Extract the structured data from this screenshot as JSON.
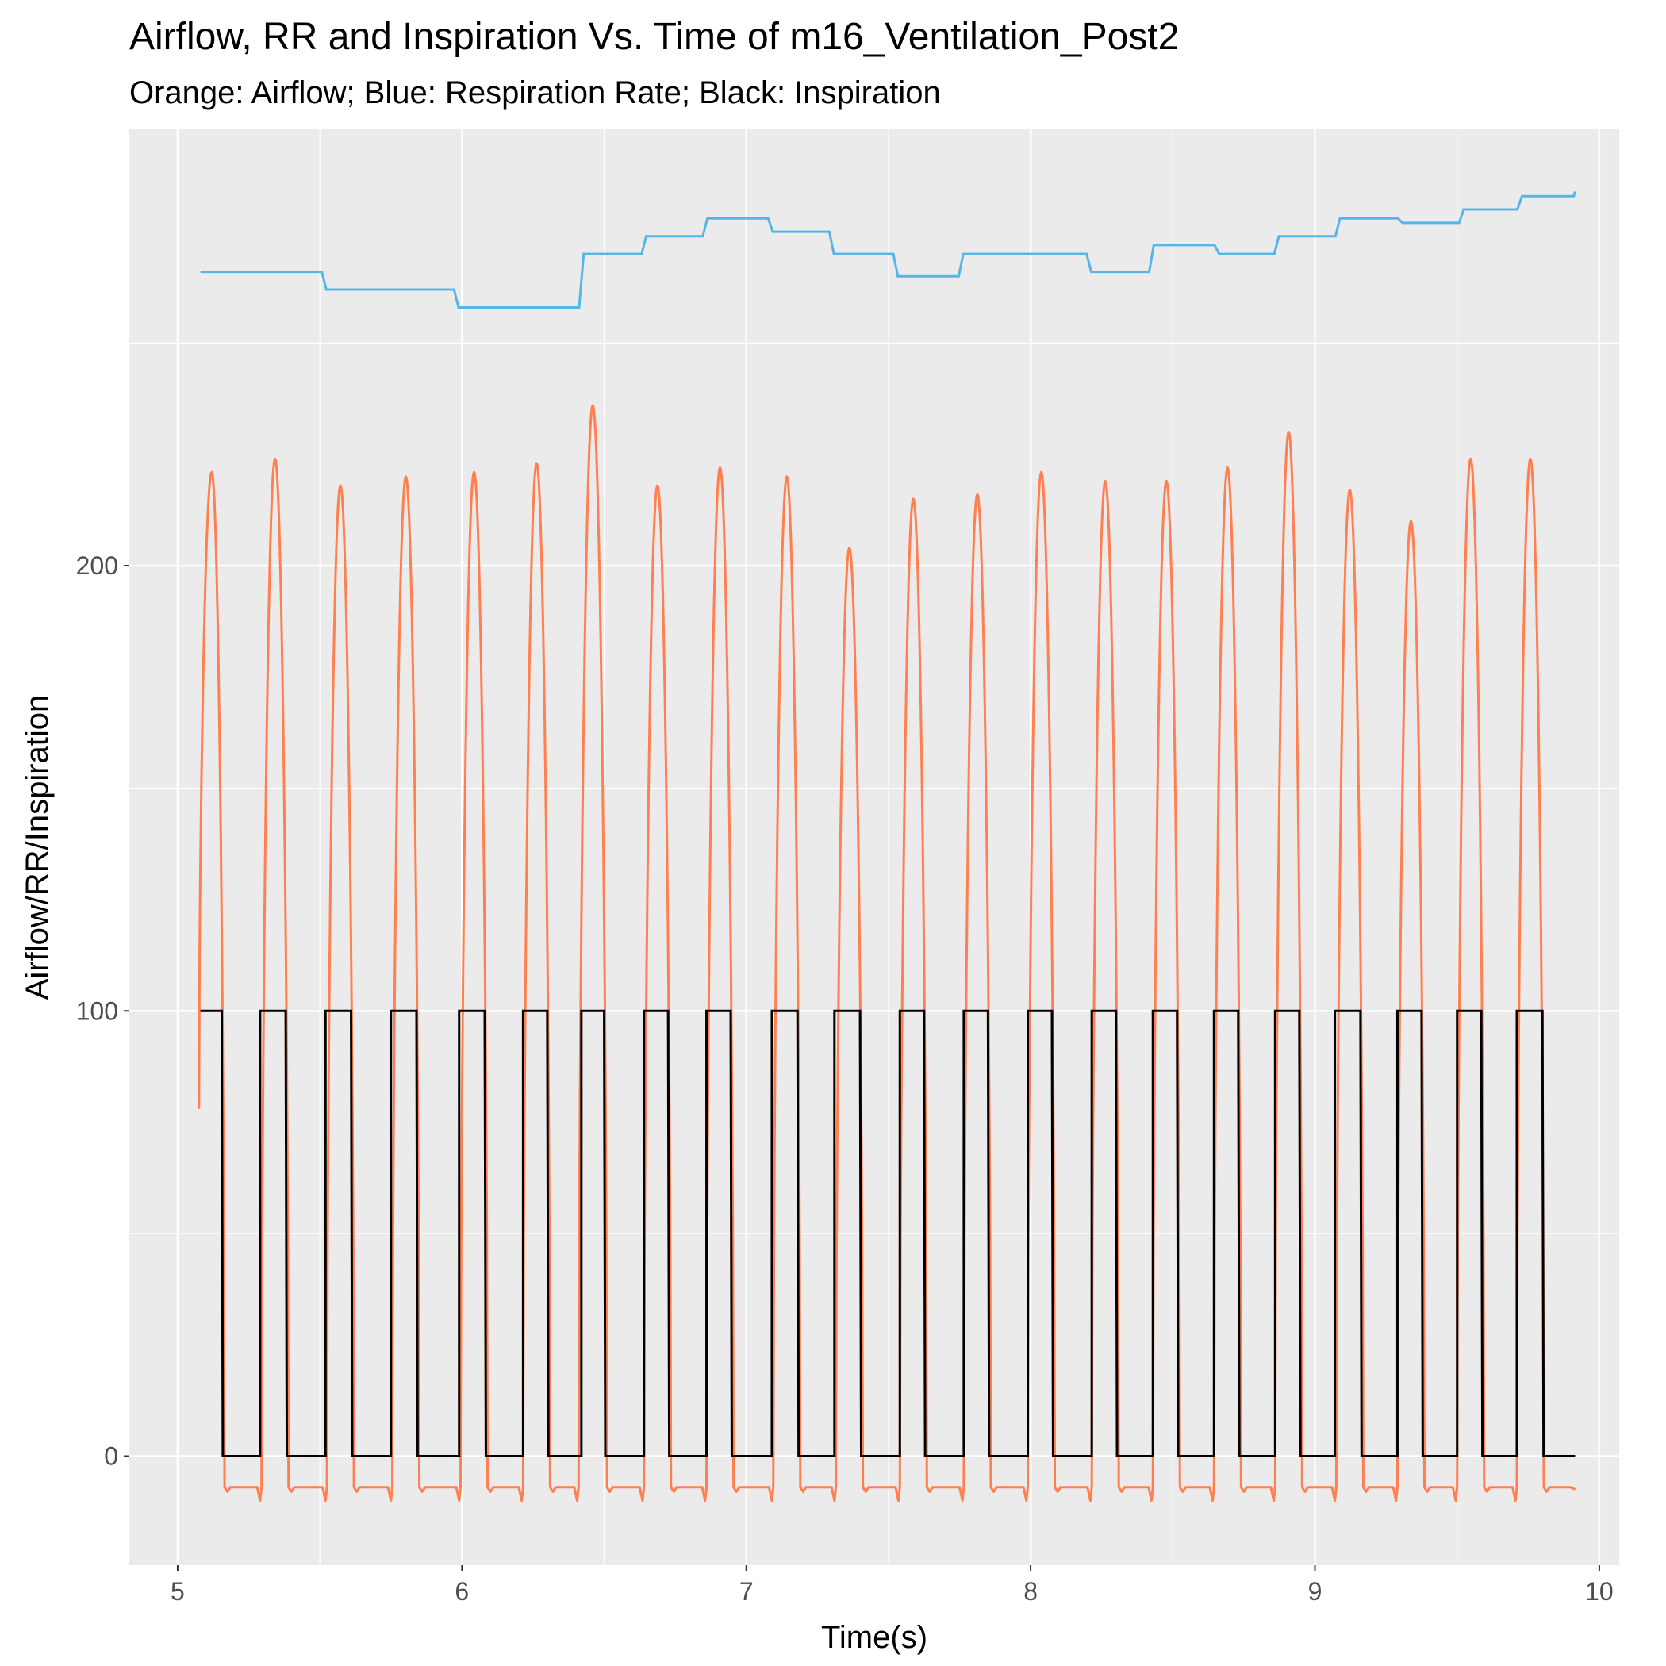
{
  "chart_data": {
    "type": "line",
    "title": "Airflow, RR and Inspiration Vs. Time  of  m16_Ventilation_Post2",
    "subtitle": "Orange: Airflow; Blue: Respiration Rate; Black: Inspiration",
    "xlabel": "Time(s)",
    "ylabel": "Airflow/RR/Inspiration",
    "xlim": [
      4.83,
      10.07
    ],
    "ylim": [
      -24.5,
      298
    ],
    "x_ticks": [
      5,
      6,
      7,
      8,
      9,
      10
    ],
    "x_tick_labels": [
      "5",
      "6",
      "7",
      "8",
      "9",
      "10"
    ],
    "y_ticks": [
      0,
      100,
      200
    ],
    "y_tick_labels": [
      "0",
      "100",
      "200"
    ],
    "grid": true,
    "panel_background": "#EBEBEB",
    "grid_color": "#FFFFFF",
    "series": [
      {
        "key": "airflow",
        "color": "#FF7F50",
        "breaths": [
          {
            "start": 5.075,
            "end": 5.165,
            "peak": 221,
            "start_value": 78
          },
          {
            "start": 5.295,
            "end": 5.39,
            "peak": 224
          },
          {
            "start": 5.525,
            "end": 5.62,
            "peak": 218
          },
          {
            "start": 5.755,
            "end": 5.85,
            "peak": 220
          },
          {
            "start": 5.995,
            "end": 6.09,
            "peak": 221
          },
          {
            "start": 6.215,
            "end": 6.31,
            "peak": 223
          },
          {
            "start": 6.41,
            "end": 6.51,
            "peak": 236
          },
          {
            "start": 6.64,
            "end": 6.735,
            "peak": 218
          },
          {
            "start": 6.86,
            "end": 6.955,
            "peak": 222
          },
          {
            "start": 7.095,
            "end": 7.19,
            "peak": 220
          },
          {
            "start": 7.315,
            "end": 7.41,
            "peak": 204
          },
          {
            "start": 7.54,
            "end": 7.635,
            "peak": 215
          },
          {
            "start": 7.765,
            "end": 7.86,
            "peak": 216
          },
          {
            "start": 7.99,
            "end": 8.085,
            "peak": 221
          },
          {
            "start": 8.215,
            "end": 8.31,
            "peak": 219
          },
          {
            "start": 8.43,
            "end": 8.525,
            "peak": 219
          },
          {
            "start": 8.645,
            "end": 8.74,
            "peak": 222
          },
          {
            "start": 8.86,
            "end": 8.955,
            "peak": 230
          },
          {
            "start": 9.075,
            "end": 9.17,
            "peak": 217
          },
          {
            "start": 9.29,
            "end": 9.385,
            "peak": 210
          },
          {
            "start": 9.5,
            "end": 9.595,
            "peak": 224
          },
          {
            "start": 9.71,
            "end": 9.805,
            "peak": 224
          }
        ],
        "baseline": -7,
        "end_value": -7.5
      },
      {
        "key": "respiration_rate",
        "color": "#56B4E9",
        "steps": [
          {
            "x": 5.08,
            "y": 266
          },
          {
            "x": 5.515,
            "y": 262
          },
          {
            "x": 5.98,
            "y": 258
          },
          {
            "x": 6.42,
            "y": 270
          },
          {
            "x": 6.64,
            "y": 274
          },
          {
            "x": 6.855,
            "y": 278
          },
          {
            "x": 7.085,
            "y": 275
          },
          {
            "x": 7.3,
            "y": 270
          },
          {
            "x": 7.525,
            "y": 265
          },
          {
            "x": 7.755,
            "y": 270
          },
          {
            "x": 8.205,
            "y": 266
          },
          {
            "x": 8.425,
            "y": 272
          },
          {
            "x": 8.655,
            "y": 270
          },
          {
            "x": 8.865,
            "y": 274
          },
          {
            "x": 9.08,
            "y": 278
          },
          {
            "x": 9.3,
            "y": 277
          },
          {
            "x": 9.515,
            "y": 280
          },
          {
            "x": 9.72,
            "y": 283
          }
        ],
        "x_end": 9.915,
        "end_value": 284
      },
      {
        "key": "inspiration",
        "color": "#000000",
        "high": 100,
        "low": 0,
        "high_intervals": [
          [
            5.08,
            5.155
          ],
          [
            5.29,
            5.38
          ],
          [
            5.52,
            5.61
          ],
          [
            5.75,
            5.84
          ],
          [
            5.99,
            6.08
          ],
          [
            6.215,
            6.3
          ],
          [
            6.42,
            6.5
          ],
          [
            6.64,
            6.725
          ],
          [
            6.86,
            6.945
          ],
          [
            7.09,
            7.18
          ],
          [
            7.31,
            7.4
          ],
          [
            7.54,
            7.625
          ],
          [
            7.765,
            7.85
          ],
          [
            7.99,
            8.075
          ],
          [
            8.215,
            8.3
          ],
          [
            8.43,
            8.515
          ],
          [
            8.645,
            8.73
          ],
          [
            8.86,
            8.945
          ],
          [
            9.07,
            9.16
          ],
          [
            9.29,
            9.375
          ],
          [
            9.5,
            9.585
          ],
          [
            9.71,
            9.8
          ]
        ],
        "x_end": 9.915
      }
    ]
  }
}
